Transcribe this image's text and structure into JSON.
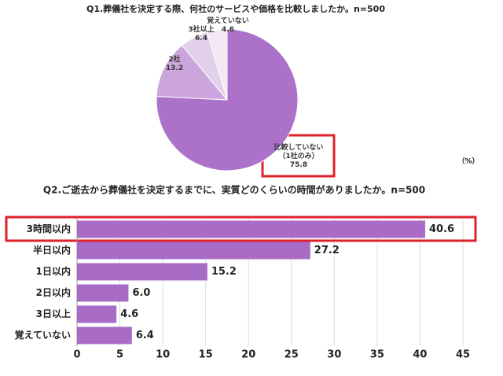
{
  "chart_data": [
    {
      "type": "pie",
      "title": "Q1.葬儀社を決定する際、何社のサービスや価格を比較しましたか。n=500",
      "unit": "（%）",
      "categories": [
        "比較していない\n（1社のみ）",
        "2社",
        "3社以上",
        "覚えていない"
      ],
      "values": [
        75.8,
        13.2,
        6.4,
        4.6
      ],
      "colors": [
        "#ac72c9",
        "#cba5db",
        "#e2cfe9",
        "#f3e7f4"
      ]
    },
    {
      "type": "hbar",
      "title": "Q2.ご逝去から葬儀社を決定するまでに、実質どのくらいの時間がありましたか。n=500",
      "categories": [
        "3時間以内",
        "半日以内",
        "1日以内",
        "2日以内",
        "3日以上",
        "覚えていない"
      ],
      "values": [
        40.6,
        27.2,
        15.2,
        6.0,
        4.6,
        6.4
      ],
      "value_labels": [
        "40.6",
        "27.2",
        "15.2",
        "6.0",
        "4.6",
        "6.4"
      ],
      "color": "#a96cc6",
      "xlim": [
        0,
        45
      ],
      "xticks": [
        0,
        5,
        10,
        15,
        20,
        25,
        30,
        35,
        40,
        45
      ],
      "grid": true
    }
  ]
}
